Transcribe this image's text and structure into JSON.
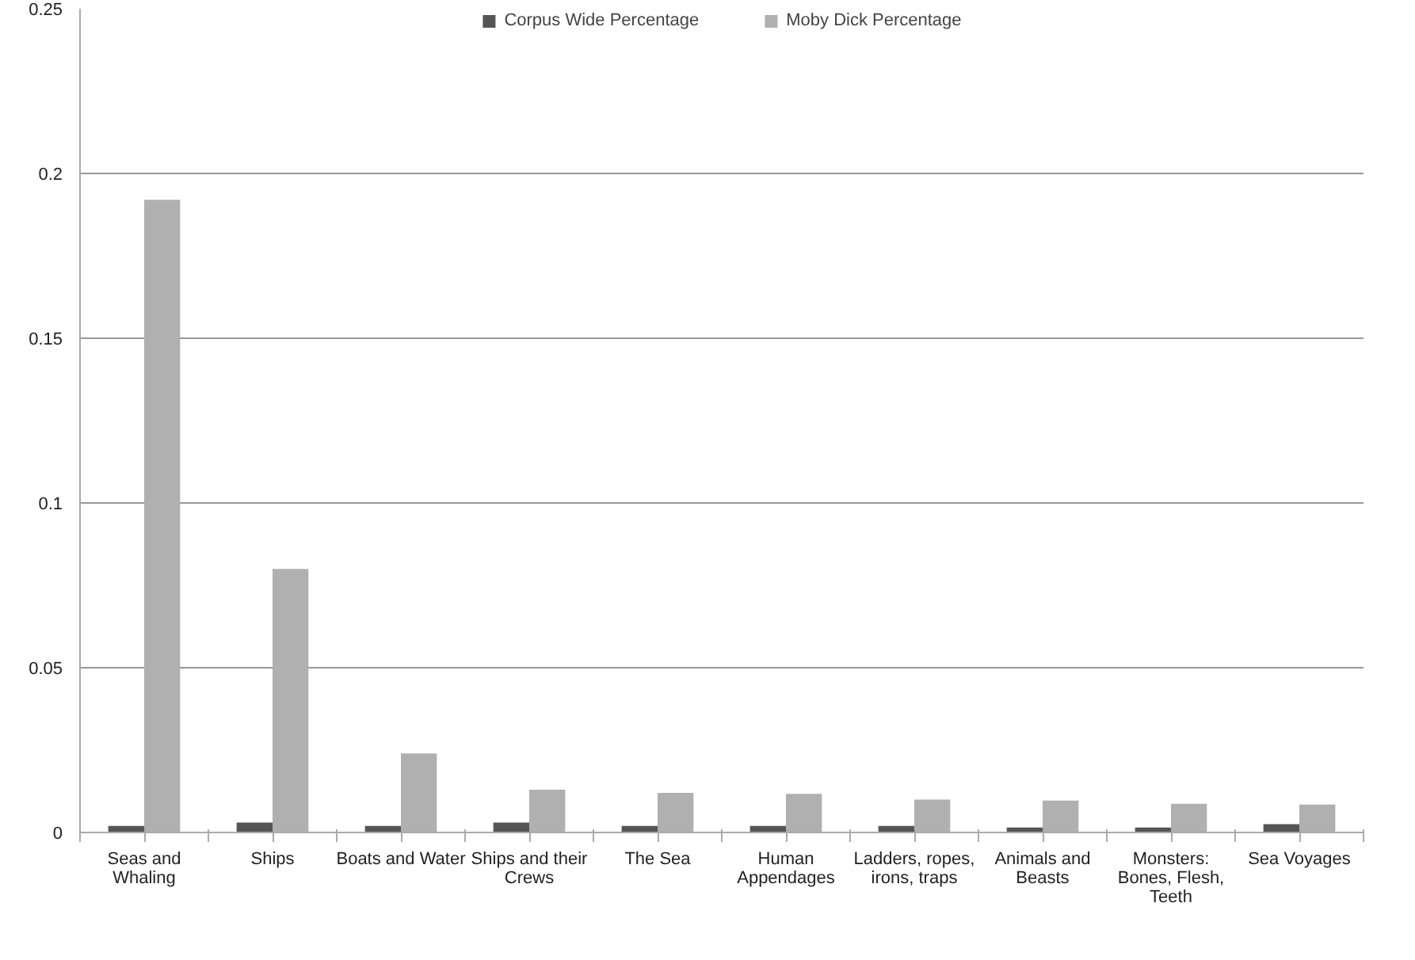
{
  "chart_data": {
    "type": "bar",
    "categories": [
      "Seas and Whaling",
      "Ships",
      "Boats and Water",
      "Ships and their Crews",
      "The Sea",
      "Human Appendages",
      "Ladders, ropes, irons, traps",
      "Animals and Beasts",
      "Monsters: Bones, Flesh, Teeth",
      "Sea Voyages"
    ],
    "series": [
      {
        "name": "Corpus Wide Percentage",
        "color": "#555555",
        "values": [
          0.002,
          0.003,
          0.002,
          0.003,
          0.002,
          0.002,
          0.002,
          0.0015,
          0.0015,
          0.0025
        ]
      },
      {
        "name": "Moby Dick Percentage",
        "color": "#b0b0b0",
        "values": [
          0.192,
          0.08,
          0.024,
          0.013,
          0.012,
          0.0117,
          0.01,
          0.0097,
          0.0087,
          0.0085
        ]
      }
    ],
    "ylim": [
      0,
      0.25
    ],
    "yticks": [
      {
        "value": 0,
        "label": "0"
      },
      0.05,
      {
        "value": 0.1,
        "label": "0.1"
      },
      0.15,
      {
        "value": 0.2,
        "label": "0.2"
      },
      0.25
    ],
    "grid": "y",
    "legend": "top"
  }
}
